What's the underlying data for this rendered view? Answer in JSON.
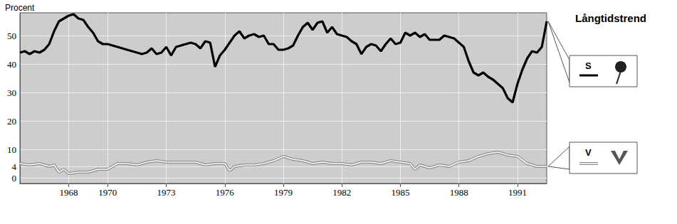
{
  "chart_data": {
    "type": "line",
    "ylabel": "Procent",
    "annotations": [
      "Långtidstrend"
    ],
    "xlim": [
      1965.5,
      1992.5
    ],
    "xticks": [
      1968,
      1970,
      1973,
      1976,
      1979,
      1982,
      1985,
      1988,
      1991
    ],
    "ylim": [
      -2,
      58
    ],
    "yticks": [
      0,
      4,
      10,
      20,
      30,
      40,
      50
    ],
    "grid": true,
    "legend": "right",
    "series": [
      {
        "name": "S",
        "color": "#000000",
        "line_style": "solid",
        "x": [
          1965.5,
          1965.75,
          1966,
          1966.25,
          1966.5,
          1966.75,
          1967,
          1967.25,
          1967.5,
          1967.75,
          1968,
          1968.25,
          1968.5,
          1968.75,
          1969,
          1969.25,
          1969.5,
          1969.75,
          1970,
          1970.5,
          1971,
          1971.5,
          1971.75,
          1972,
          1972.25,
          1972.5,
          1972.75,
          1973,
          1973.25,
          1973.5,
          1973.75,
          1974,
          1974.25,
          1974.5,
          1974.75,
          1975,
          1975.25,
          1975.5,
          1975.75,
          1976,
          1976.25,
          1976.5,
          1976.75,
          1977,
          1977.25,
          1977.5,
          1977.75,
          1978,
          1978.25,
          1978.5,
          1978.75,
          1979,
          1979.25,
          1979.5,
          1979.75,
          1980,
          1980.25,
          1980.5,
          1980.75,
          1981,
          1981.25,
          1981.5,
          1981.75,
          1982,
          1982.25,
          1982.5,
          1982.75,
          1983,
          1983.25,
          1983.5,
          1983.75,
          1984,
          1984.25,
          1984.5,
          1984.75,
          1985,
          1985.25,
          1985.5,
          1985.75,
          1986,
          1986.25,
          1986.5,
          1986.75,
          1987,
          1987.25,
          1987.5,
          1987.75,
          1988,
          1988.25,
          1988.5,
          1988.75,
          1989,
          1989.25,
          1989.5,
          1989.75,
          1990,
          1990.25,
          1990.5,
          1990.75,
          1991,
          1991.25,
          1991.5,
          1991.75,
          1992,
          1992.25,
          1992.5
        ],
        "values": [
          44,
          44.5,
          43.5,
          44.5,
          44,
          45,
          47,
          51.5,
          55,
          56,
          57,
          57.5,
          56,
          55.5,
          53,
          51,
          48,
          47,
          47,
          46,
          45,
          44,
          43.5,
          44,
          45.5,
          43.5,
          44,
          46,
          43,
          46,
          46.5,
          47,
          47.5,
          47,
          45.5,
          48,
          47.5,
          39,
          43,
          45,
          47.5,
          50,
          51.5,
          49,
          50,
          50.5,
          49.5,
          50,
          47,
          47,
          45,
          45,
          45.5,
          46.5,
          50,
          53,
          54.5,
          52,
          54.5,
          55,
          51,
          53,
          50.5,
          50,
          49.5,
          48,
          47,
          43.5,
          46,
          47,
          46.5,
          44.5,
          47,
          49,
          47,
          47.5,
          51,
          50,
          51,
          49.5,
          50.5,
          48.5,
          48.5,
          48.5,
          50,
          49.5,
          49,
          47.5,
          46,
          41,
          37,
          36,
          37,
          35.5,
          34.5,
          33,
          31.5,
          28,
          26.5,
          33,
          38,
          42,
          44.5,
          44,
          46,
          55
        ]
      },
      {
        "name": "V",
        "color": "#8c8c8c",
        "line_style": "double",
        "x": [
          1965.5,
          1966,
          1966.5,
          1967,
          1967.25,
          1967.5,
          1967.75,
          1968,
          1968.5,
          1969,
          1969.5,
          1970,
          1970.5,
          1971,
          1971.5,
          1972,
          1972.5,
          1973,
          1973.5,
          1974,
          1974.5,
          1975,
          1975.5,
          1976,
          1976.25,
          1976.5,
          1977,
          1977.5,
          1978,
          1978.5,
          1979,
          1979.5,
          1980,
          1980.5,
          1981,
          1981.5,
          1982,
          1982.5,
          1983,
          1983.5,
          1984,
          1984.5,
          1985,
          1985.5,
          1985.75,
          1986,
          1986.5,
          1987,
          1987.5,
          1988,
          1988.5,
          1989,
          1989.5,
          1990,
          1990.5,
          1991,
          1991.5,
          1992,
          1992.5
        ],
        "values": [
          5,
          4.5,
          5,
          4,
          4.5,
          2,
          3,
          1.5,
          2,
          2,
          3,
          3,
          5,
          5,
          4.5,
          5.5,
          6,
          5.5,
          5.5,
          5.5,
          5.5,
          4.5,
          5,
          5,
          2.5,
          4,
          4.5,
          4.5,
          5,
          6,
          7.5,
          6.5,
          6,
          5,
          5.5,
          5,
          5,
          4.5,
          5.5,
          5.5,
          5,
          6,
          5.5,
          5,
          3,
          4.5,
          3.5,
          4.5,
          4,
          5.5,
          6,
          7.5,
          8.5,
          9,
          8,
          7.5,
          5,
          4,
          4
        ]
      }
    ]
  }
}
